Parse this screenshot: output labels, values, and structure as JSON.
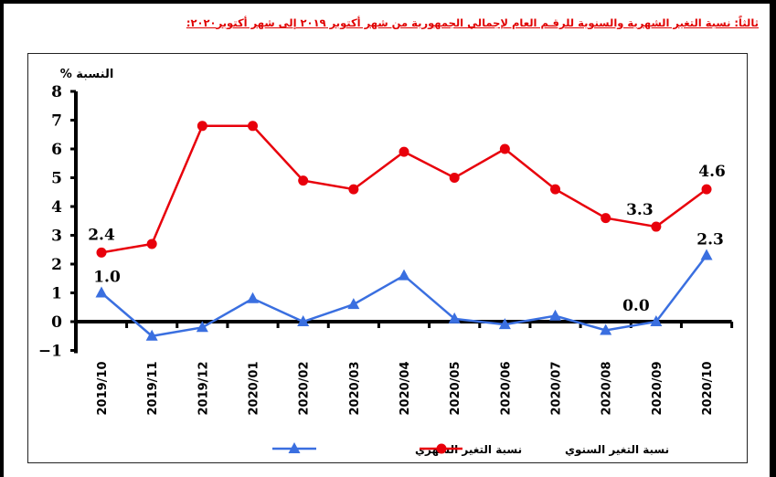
{
  "header": {
    "title": "ثالثاً: نسبة التغير الشهرية والسنوية للرقـم العام لإجمالي الجمهورية من شهر أكتوبر ٢٠١٩ إلى شهر أكتوبر٢٠٢٠:"
  },
  "colors": {
    "annual": "#e8000b",
    "monthly": "#3a6fe0",
    "title": "#e00000"
  },
  "chart_data": {
    "type": "line",
    "title": "نسبة التغير الشهرية والسنوية للرقم العام لإجمالي الجمهورية من شهر أكتوبر 2019 إلى شهر أكتوبر 2020",
    "xlabel": "",
    "ylabel": "النسبة %",
    "ylim": [
      -1,
      8
    ],
    "yticks": [
      "8",
      "7",
      "6",
      "5",
      "4",
      "3",
      "2",
      "1",
      "0",
      "-1"
    ],
    "grid": false,
    "legend_position": "bottom",
    "categories": [
      "2019/10",
      "2019/11",
      "2019/12",
      "2020/01",
      "2020/02",
      "2020/03",
      "2020/04",
      "2020/05",
      "2020/06",
      "2020/07",
      "2020/08",
      "2020/09",
      "2020/10"
    ],
    "series": [
      {
        "name": "نسبة التغير السنوي",
        "marker": "circle",
        "color": "#e8000b",
        "values": [
          2.4,
          2.7,
          6.8,
          6.8,
          4.9,
          4.6,
          5.9,
          5.0,
          6.0,
          4.6,
          3.6,
          3.3,
          4.6
        ]
      },
      {
        "name": "نسبة التغير الشهري",
        "marker": "triangle",
        "color": "#3a6fe0",
        "values": [
          1.0,
          -0.5,
          -0.2,
          0.8,
          0.0,
          0.6,
          1.6,
          0.1,
          -0.1,
          0.2,
          -0.3,
          0.0,
          2.3
        ]
      }
    ],
    "annotations": [
      {
        "series": "نسبة التغير السنوي",
        "index": 0,
        "text": "2.4"
      },
      {
        "series": "نسبة التغير السنوي",
        "index": 11,
        "text": "3.3"
      },
      {
        "series": "نسبة التغير السنوي",
        "index": 12,
        "text": "4.6"
      },
      {
        "series": "نسبة التغير الشهري",
        "index": 0,
        "text": "1.0"
      },
      {
        "series": "نسبة التغير الشهري",
        "index": 11,
        "text": "0.0"
      },
      {
        "series": "نسبة التغير الشهري",
        "index": 12,
        "text": "2.3"
      }
    ]
  },
  "legend": {
    "annual_label": "نسبة التغير السنوي",
    "monthly_label": "نسبة التغير الشهري"
  }
}
